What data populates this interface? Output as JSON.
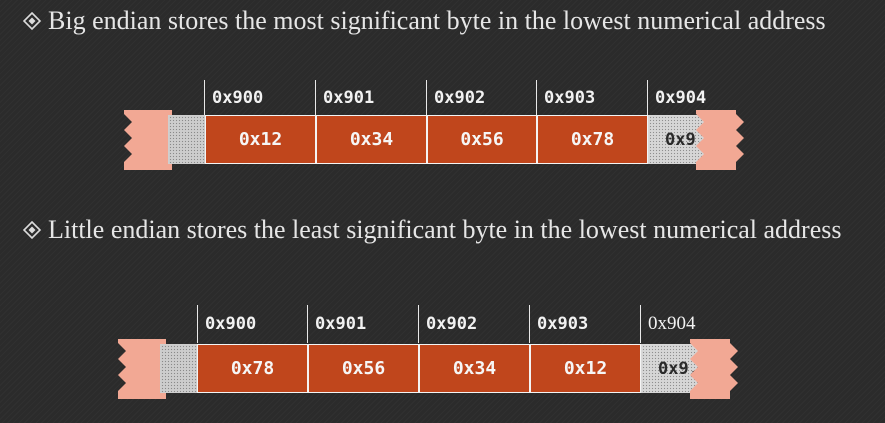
{
  "bullets": [
    {
      "text": "Big endian stores the most significant byte in the lowest numerical address"
    },
    {
      "text": "Little endian stores the least significant byte in the lowest numerical address"
    }
  ],
  "big_endian": {
    "addresses": [
      "0x900",
      "0x901",
      "0x902",
      "0x903",
      "0x904"
    ],
    "bytes": [
      "0x12",
      "0x34",
      "0x56",
      "0x78"
    ],
    "overflow_byte": "0x9..."
  },
  "little_endian": {
    "addresses": [
      "0x900",
      "0x901",
      "0x902",
      "0x903",
      "0x904"
    ],
    "bytes": [
      "0x78",
      "0x56",
      "0x34",
      "0x12"
    ],
    "overflow_byte": "0x9..."
  },
  "colors": {
    "byte_cell": "#c0461c",
    "tear_edge": "#f2a894",
    "background": "#2b2b2b"
  }
}
